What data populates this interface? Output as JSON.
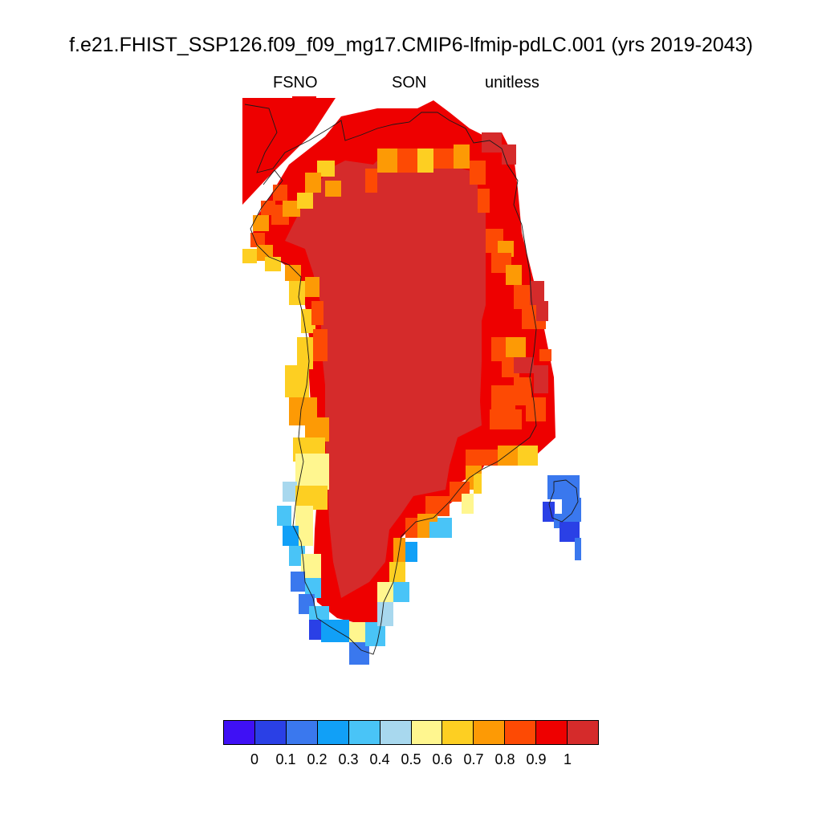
{
  "title": "f.e21.FHIST_SSP126.f09_f09_mg17.CMIP6-lfmip-pdLC.001 (yrs 2019-2043)",
  "subtitle": {
    "variable": "FSNO",
    "season": "SON",
    "units": "unitless"
  },
  "colorbar": {
    "colors": [
      "#3f10f5",
      "#2a40e6",
      "#3a78ee",
      "#11a0f7",
      "#49c4f7",
      "#a8d8ee",
      "#fff68f",
      "#fdcf22",
      "#fd9a05",
      "#fd4a04",
      "#ee0000",
      "#d52b2b"
    ],
    "labels": [
      "0",
      "0.1",
      "0.2",
      "0.3",
      "0.4",
      "0.5",
      "0.6",
      "0.7",
      "0.8",
      "0.9",
      "1"
    ]
  },
  "map": {
    "region": "Greenland",
    "colors": {
      "interior": "#d52b2b",
      "high_rim": "#ee0000",
      "rim_08": "#fd4a04",
      "rim_07": "#fd9a05",
      "rim_06": "#fdcf22",
      "rim_05": "#fff68f",
      "rim_04": "#a8d8ee",
      "rim_03": "#49c4f7",
      "rim_02": "#11a0f7",
      "rim_01": "#3a78ee",
      "rim_00": "#2a40e6",
      "low": "#3f10f5",
      "coast": "#1a1a1a"
    }
  }
}
